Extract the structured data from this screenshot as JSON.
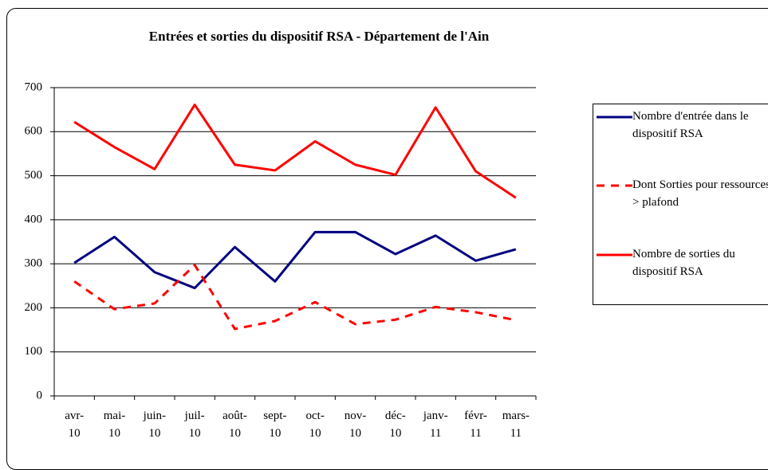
{
  "chart_data": {
    "type": "line",
    "title": "Entrées et sorties du dispositif RSA - Département de l'Ain",
    "categories": [
      "avr-10",
      "mai-10",
      "juin-10",
      "juil-10",
      "août-10",
      "sept-10",
      "oct-10",
      "nov-10",
      "déc-10",
      "janv-11",
      "févr-11",
      "mars-11"
    ],
    "series": [
      {
        "name": "Nombre d'entrée dans le dispositif RSA",
        "color": "#000080",
        "dash": false,
        "values": [
          302,
          361,
          281,
          245,
          338,
          260,
          372,
          372,
          322,
          364,
          307,
          333
        ]
      },
      {
        "name": "Dont Sorties  pour ressources > plafond",
        "color": "#ff0000",
        "dash": true,
        "values": [
          260,
          197,
          210,
          297,
          152,
          170,
          213,
          163,
          173,
          202,
          190,
          172
        ]
      },
      {
        "name": "Nombre de sorties du dispositif RSA",
        "color": "#ff0000",
        "dash": false,
        "values": [
          622,
          565,
          515,
          661,
          525,
          512,
          578,
          525,
          502,
          655,
          510,
          450
        ]
      }
    ],
    "ylim": [
      0,
      700
    ],
    "yticks": [
      0,
      100,
      200,
      300,
      400,
      500,
      600,
      700
    ],
    "grid": true,
    "legend": "right"
  }
}
